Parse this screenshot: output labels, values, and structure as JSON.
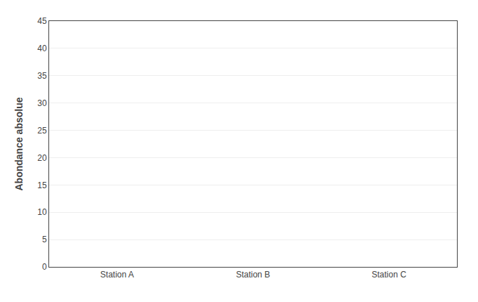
{
  "chart_data": {
    "type": "bar",
    "ylabel": "Abondance absolue",
    "categories": [
      "Station A",
      "Station B",
      "Station C"
    ],
    "ylim": [
      0,
      45
    ],
    "yticks": [
      0,
      5,
      10,
      15,
      20,
      25,
      30,
      35,
      40,
      45
    ],
    "grid": true
  }
}
